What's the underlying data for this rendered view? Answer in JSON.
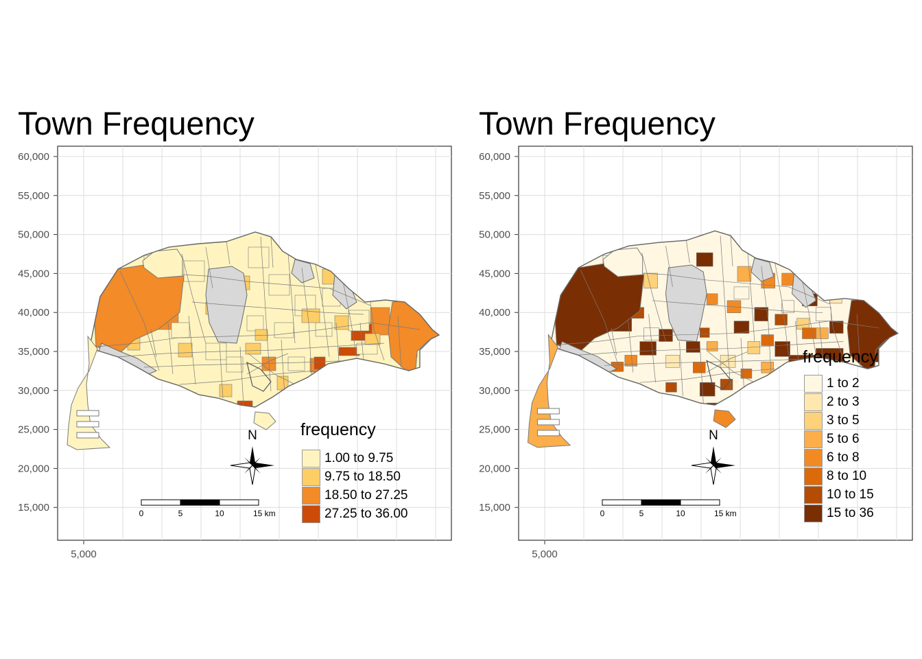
{
  "maps": [
    {
      "title": "Town Frequency",
      "y_axis_ticks": [
        "60,000",
        "55,000",
        "50,000",
        "45,000",
        "40,000",
        "35,000",
        "30,000",
        "25,000",
        "20,000",
        "15,000"
      ],
      "x_axis_ticks": [
        "5,000"
      ],
      "north_label": "N",
      "scale_bar": {
        "labels": [
          "0",
          "5",
          "10",
          "15 km"
        ]
      },
      "legend": {
        "title": "frequency",
        "position": "bottom-right",
        "classes": [
          {
            "label": "1.00 to 9.75",
            "color": "#FFF4C0"
          },
          {
            "label": "9.75 to 18.50",
            "color": "#FDCD66"
          },
          {
            "label": "18.50 to 27.25",
            "color": "#F28B28"
          },
          {
            "label": "27.25 to 36.00",
            "color": "#CC4B08"
          }
        ]
      },
      "missing_color": "#D8D8D8"
    },
    {
      "title": "Town Frequency",
      "y_axis_ticks": [
        "60,000",
        "55,000",
        "50,000",
        "45,000",
        "40,000",
        "35,000",
        "30,000",
        "25,000",
        "20,000",
        "15,000"
      ],
      "x_axis_ticks": [
        "5,000"
      ],
      "north_label": "N",
      "scale_bar": {
        "labels": [
          "0",
          "5",
          "10",
          "15 km"
        ]
      },
      "legend": {
        "title": "frequency",
        "position": "bottom-right",
        "classes": [
          {
            "label": "1 to 2",
            "color": "#FFF7E2"
          },
          {
            "label": "2 to 3",
            "color": "#FEE8B0"
          },
          {
            "label": "3 to 5",
            "color": "#FED27B"
          },
          {
            "label": "5 to 6",
            "color": "#FBAE4A"
          },
          {
            "label": "6 to 8",
            "color": "#F28A23"
          },
          {
            "label": "8 to 10",
            "color": "#DD6A0A"
          },
          {
            "label": "10 to 15",
            "color": "#B44C04"
          },
          {
            "label": "15 to 36",
            "color": "#7A2E04"
          }
        ]
      },
      "missing_color": "#D8D8D8"
    }
  ]
}
